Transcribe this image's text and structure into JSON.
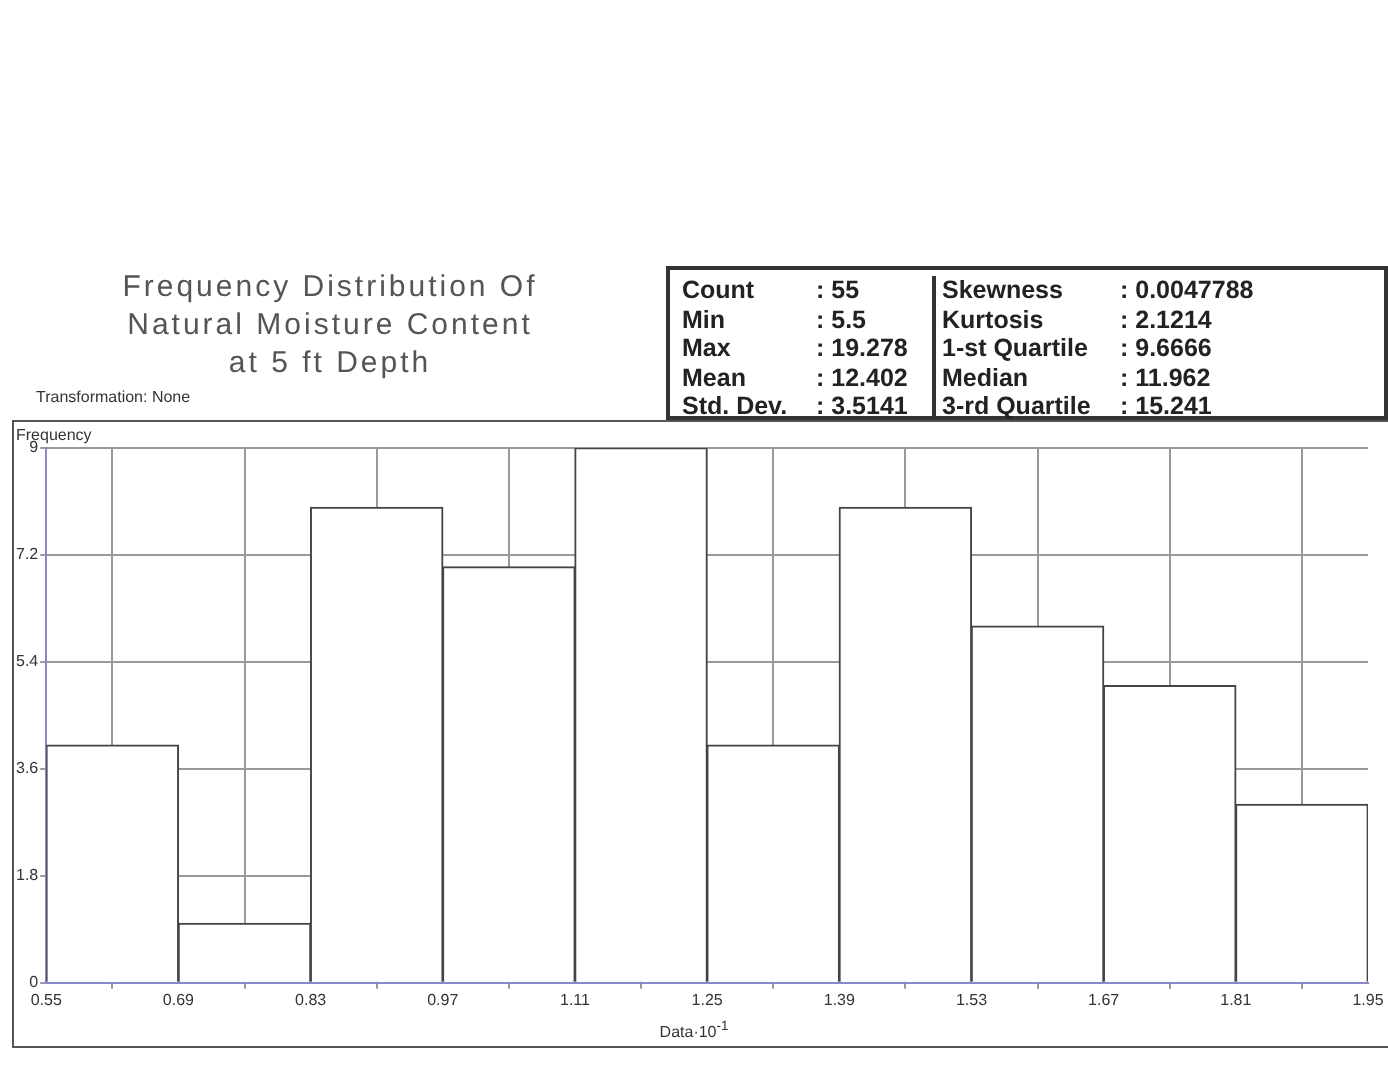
{
  "chart_data": {
    "type": "histogram",
    "title": "Frequency Distribution Of\nNatural Moisture Content\nat 5 ft Depth",
    "xlabel": "Data·10$^{-1}$",
    "ylabel": "Frequency",
    "bins": [
      0.55,
      0.69,
      0.83,
      0.97,
      1.11,
      1.25,
      1.39,
      1.53,
      1.67,
      1.81,
      1.95
    ],
    "values": [
      4,
      1,
      8,
      7,
      9,
      4,
      8,
      6,
      5,
      3
    ],
    "color": "#ffffff",
    "xlim": [
      0.55,
      1.95
    ],
    "xticks": [
      0.55,
      0.69,
      0.83,
      0.97,
      1.11,
      1.25,
      1.39,
      1.53,
      1.67,
      1.81,
      1.95
    ],
    "ylim": [
      0,
      9
    ],
    "yticks": [
      0,
      1.8,
      3.6,
      5.4,
      7.2,
      9
    ],
    "grid": true,
    "legend": false,
    "annotations": [
      "Transformation: None",
      "Count",
      ": 55",
      "Skewness",
      ": 0.0047788",
      "Min",
      ": 5.5",
      "Kurtosis",
      ": 2.1214",
      "Max",
      ": 19.278",
      "1-st Quartile",
      ": 9.6666",
      "Mean",
      ": 12.402",
      "Median",
      ": 11.962",
      "Std. Dev.",
      ": 3.5141",
      "3-rd Quartile",
      ": 15.241"
    ]
  }
}
